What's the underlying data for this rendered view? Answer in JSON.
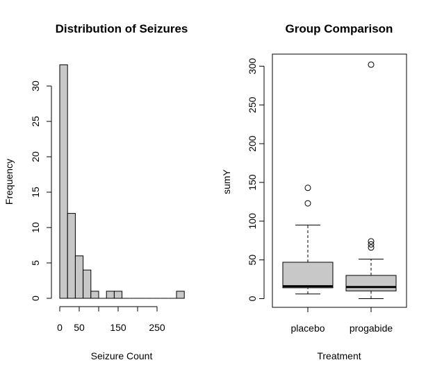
{
  "chart_data": [
    {
      "type": "histogram",
      "title": "Distribution of Seizures",
      "xlabel": "Seizure Count",
      "ylabel": "Frequency",
      "bin_width": 20,
      "bins": [
        {
          "start": 0,
          "end": 20,
          "count": 33
        },
        {
          "start": 20,
          "end": 40,
          "count": 12
        },
        {
          "start": 40,
          "end": 60,
          "count": 6
        },
        {
          "start": 60,
          "end": 80,
          "count": 4
        },
        {
          "start": 80,
          "end": 100,
          "count": 1
        },
        {
          "start": 100,
          "end": 120,
          "count": 0
        },
        {
          "start": 120,
          "end": 140,
          "count": 1
        },
        {
          "start": 140,
          "end": 160,
          "count": 1
        },
        {
          "start": 160,
          "end": 180,
          "count": 0
        },
        {
          "start": 180,
          "end": 200,
          "count": 0
        },
        {
          "start": 200,
          "end": 220,
          "count": 0
        },
        {
          "start": 220,
          "end": 240,
          "count": 0
        },
        {
          "start": 240,
          "end": 260,
          "count": 0
        },
        {
          "start": 260,
          "end": 280,
          "count": 0
        },
        {
          "start": 280,
          "end": 300,
          "count": 0
        },
        {
          "start": 300,
          "end": 320,
          "count": 1
        }
      ],
      "xlim": [
        0,
        320
      ],
      "ylim": [
        0,
        33
      ],
      "xticks": [
        0,
        50,
        150,
        250
      ],
      "yticks": [
        0,
        5,
        10,
        15,
        20,
        25,
        30
      ],
      "bar_color": "#c8c8c8"
    },
    {
      "type": "boxplot",
      "title": "Group Comparison",
      "xlabel": "Treatment",
      "ylabel": "sumY",
      "categories": [
        "placebo",
        "progabide"
      ],
      "boxes": [
        {
          "name": "placebo",
          "min": 6,
          "q1": 14,
          "median": 16,
          "q3": 47,
          "max": 95,
          "outliers": [
            123,
            143
          ]
        },
        {
          "name": "progabide",
          "min": 0,
          "q1": 10,
          "median": 15,
          "q3": 30,
          "max": 51,
          "outliers": [
            66,
            70,
            74,
            302
          ]
        }
      ],
      "ylim": [
        -12,
        315
      ],
      "yticks": [
        0,
        50,
        100,
        150,
        200,
        250,
        300
      ],
      "box_color": "#c8c8c8"
    }
  ]
}
